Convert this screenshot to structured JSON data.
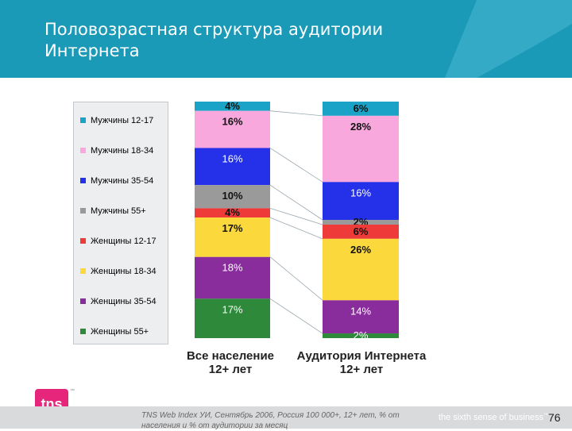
{
  "title": "Половозрастная структура аудитории Интернета",
  "colors": {
    "header": "#1b9ab8",
    "header_light": "#3fb1cc",
    "logo": "#e6267b"
  },
  "chart_data": {
    "type": "bar",
    "stacked": true,
    "categories": [
      "Все население\n12+ лет",
      "Аудитория Интернета\n12+ лет"
    ],
    "series": [
      {
        "name": "Мужчины 12-17",
        "color": "#1aa3c6",
        "values": [
          4,
          6
        ],
        "labels": [
          "4%",
          "6%"
        ]
      },
      {
        "name": "Мужчины 18-34",
        "color": "#f9a8de",
        "values": [
          16,
          28
        ],
        "labels": [
          "16%",
          "28%"
        ]
      },
      {
        "name": "Мужчины 35-54",
        "color": "#2431e8",
        "values": [
          16,
          16
        ],
        "labels": [
          "16%",
          "16%"
        ]
      },
      {
        "name": "Мужчины 55+",
        "color": "#9a9a9a",
        "values": [
          10,
          2
        ],
        "labels": [
          "10%",
          "2%"
        ]
      },
      {
        "name": "Женщины 12-17",
        "color": "#ef3a3a",
        "values": [
          4,
          6
        ],
        "labels": [
          "4%",
          "6%"
        ]
      },
      {
        "name": "Женщины 18-34",
        "color": "#fbd93c",
        "values": [
          17,
          26
        ],
        "labels": [
          "17%",
          "26%"
        ]
      },
      {
        "name": "Женщины 35-54",
        "color": "#8a2d9c",
        "values": [
          18,
          14
        ],
        "labels": [
          "18%",
          "14%"
        ]
      },
      {
        "name": "Женщины 55+",
        "color": "#2e8a3a",
        "values": [
          17,
          2
        ],
        "labels": [
          "17%",
          "2%"
        ]
      }
    ],
    "ylim": [
      0,
      100
    ],
    "legend_position": "left"
  },
  "footer": {
    "source": "TNS Web Index УИ, Сентябрь 2006, Россия 100 000+, 12+ лет, % от населения и % от аудитории за месяц",
    "tagline": "the sixth sense of business",
    "tagline_tm": "™",
    "logo_text": "tns",
    "logo_tm": "™",
    "page": "76"
  }
}
